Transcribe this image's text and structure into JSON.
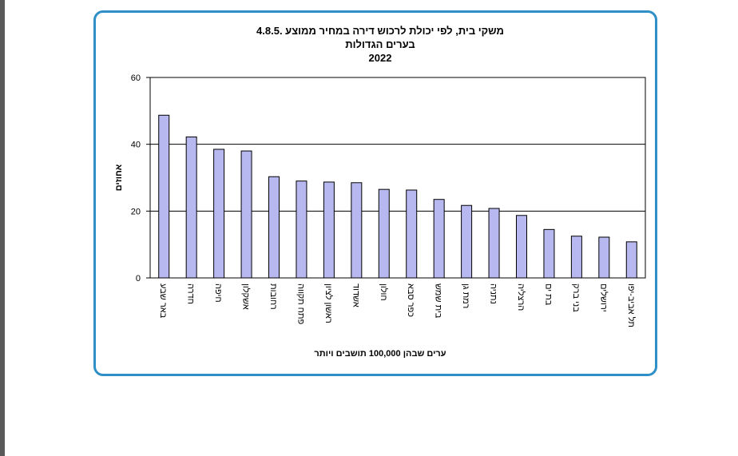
{
  "chart_data": {
    "type": "bar",
    "title": [
      "4.8.5. משקי בית, לפי יכולת לרכוש דירה במחיר ממוצע",
      "בערים הגדולות",
      "2022"
    ],
    "xlabel": "ערים שבהן 100,000 תושבים ויותר",
    "ylabel": "אחוזים",
    "ylim": [
      0,
      60
    ],
    "yticks": [
      0,
      20,
      40,
      60
    ],
    "grid": true,
    "colors": {
      "bar_fill": "#b8b8f0",
      "bar_stroke": "#000000",
      "frame": "#2f8fc7"
    },
    "categories": [
      "באר שבע",
      "חדרה",
      "חיפה",
      "אשקלון",
      "רחובות",
      "פתח תקווה",
      "ראשון לציון",
      "אשדוד",
      "חולון",
      "כפר סבא",
      "בית שמש",
      "רמת גן",
      "נתניה",
      "הרצליה",
      "בת ים",
      "בני ברק",
      "ירושלים",
      "תל אביב-יפו"
    ],
    "values": [
      48.7,
      42.2,
      38.5,
      38.0,
      30.3,
      29.0,
      28.7,
      28.5,
      26.5,
      26.3,
      23.5,
      21.7,
      20.8,
      18.7,
      14.5,
      12.5,
      12.2,
      10.8
    ]
  }
}
